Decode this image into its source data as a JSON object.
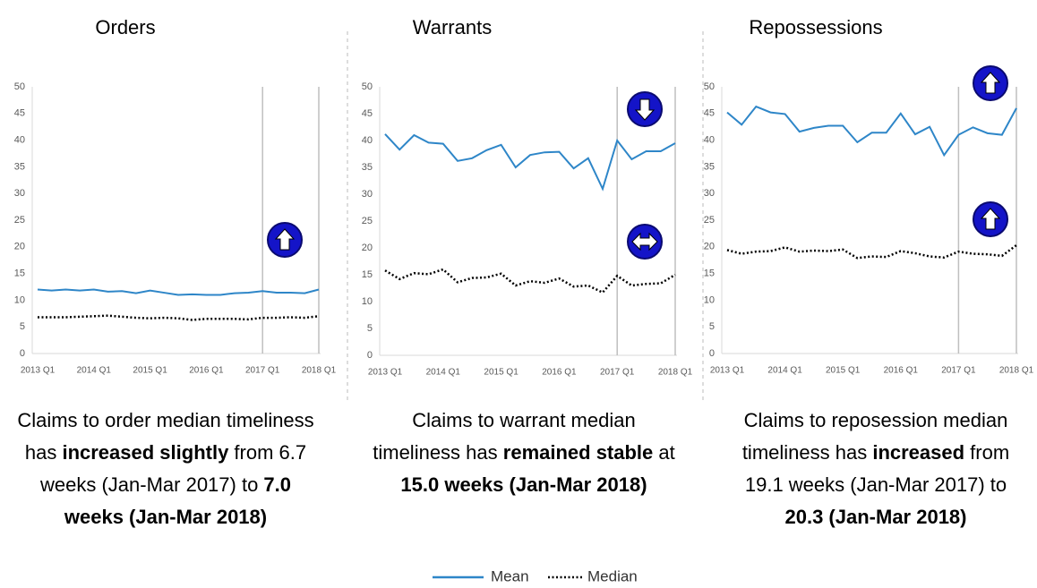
{
  "chart_data": [
    {
      "type": "line",
      "title": "Orders",
      "categories": [
        "2013 Q1",
        null,
        null,
        null,
        "2014 Q1",
        null,
        null,
        null,
        "2015 Q1",
        null,
        null,
        null,
        "2016 Q1",
        null,
        null,
        null,
        "2017 Q1",
        null,
        null,
        null,
        "2018 Q1"
      ],
      "series": [
        {
          "color": "#2e86c8",
          "dash": "solid",
          "values": [
            12,
            11.8,
            12,
            11.8,
            12,
            11.6,
            11.7,
            11.3,
            11.8,
            11.4,
            11,
            11.1,
            11,
            11,
            11.3,
            11.4,
            11.7,
            11.4,
            11.4,
            11.3,
            12
          ]
        },
        {
          "color": "#000000",
          "dash": "dotted",
          "values": [
            6.8,
            6.8,
            6.8,
            6.9,
            7,
            7.1,
            6.9,
            6.7,
            6.6,
            6.7,
            6.6,
            6.3,
            6.5,
            6.5,
            6.5,
            6.4,
            6.7,
            6.7,
            6.8,
            6.7,
            7.0
          ]
        }
      ],
      "ylim": [
        0,
        50
      ],
      "yticks": [
        0,
        5,
        10,
        15,
        20,
        25,
        30,
        35,
        40,
        45,
        50
      ]
    },
    {
      "type": "line",
      "title": "Warrants",
      "categories": [
        "2013 Q1",
        null,
        null,
        null,
        "2014 Q1",
        null,
        null,
        null,
        "2015 Q1",
        null,
        null,
        null,
        "2016 Q1",
        null,
        null,
        null,
        "2017 Q1",
        null,
        null,
        null,
        "2018 Q1"
      ],
      "series": [
        {
          "color": "#2e86c8",
          "dash": "solid",
          "values": [
            41.2,
            38.3,
            41,
            39.6,
            39.4,
            36.2,
            36.7,
            38.2,
            39.2,
            35,
            37.3,
            37.8,
            37.9,
            34.8,
            36.7,
            31,
            40,
            36.5,
            38,
            38,
            39.5
          ]
        },
        {
          "color": "#000000",
          "dash": "dotted",
          "values": [
            15.8,
            14.2,
            15.3,
            15.1,
            16,
            13.6,
            14.4,
            14.5,
            15.2,
            13,
            13.8,
            13.5,
            14.3,
            12.8,
            13,
            11.7,
            14.8,
            13,
            13.3,
            13.4,
            15.0
          ]
        }
      ],
      "ylim": [
        0,
        50
      ],
      "yticks": [
        0,
        5,
        10,
        15,
        20,
        25,
        30,
        35,
        40,
        45,
        50
      ]
    },
    {
      "type": "line",
      "title": "Repossessions",
      "categories": [
        "2013 Q1",
        null,
        null,
        null,
        "2014 Q1",
        null,
        null,
        null,
        "2015 Q1",
        null,
        null,
        null,
        "2016 Q1",
        null,
        null,
        null,
        "2017 Q1",
        null,
        null,
        null,
        "2018 Q1"
      ],
      "series": [
        {
          "color": "#2e86c8",
          "dash": "solid",
          "values": [
            45.2,
            42.9,
            46.3,
            45.2,
            44.9,
            41.6,
            42.3,
            42.7,
            42.7,
            39.6,
            41.4,
            41.4,
            45,
            41.1,
            42.5,
            37.2,
            41,
            42.4,
            41.3,
            41,
            46
          ]
        },
        {
          "color": "#000000",
          "dash": "dotted",
          "values": [
            19.4,
            18.7,
            19.1,
            19.2,
            19.9,
            19.1,
            19.3,
            19.2,
            19.5,
            17.9,
            18.2,
            18.1,
            19.2,
            18.8,
            18.2,
            18,
            19.1,
            18.7,
            18.6,
            18.3,
            20.3
          ]
        }
      ],
      "ylim": [
        0,
        50
      ],
      "yticks": [
        0,
        5,
        10,
        15,
        20,
        25,
        30,
        35,
        40,
        45,
        50
      ]
    }
  ],
  "captions": [
    [
      {
        "text": "Claims to order median timeliness has ",
        "bold": false
      },
      {
        "text": "increased slightly",
        "bold": true
      },
      {
        "text": " from 6.7 weeks (Jan-Mar 2017) to ",
        "bold": false
      },
      {
        "text": "7.0 weeks (Jan-Mar 2018)",
        "bold": true
      }
    ],
    [
      {
        "text": "Claims to warrant median timeliness has ",
        "bold": false
      },
      {
        "text": "remained stable",
        "bold": true
      },
      {
        "text": " at ",
        "bold": false
      },
      {
        "text": "15.0 weeks (Jan-Mar 2018)",
        "bold": true
      }
    ],
    [
      {
        "text": "Claims to reposession median timeliness has ",
        "bold": false
      },
      {
        "text": "increased",
        "bold": true
      },
      {
        "text": " from 19.1 weeks (Jan-Mar 2017) to ",
        "bold": false
      },
      {
        "text": "20.3 (Jan-Mar 2018)",
        "bold": true
      }
    ]
  ],
  "legend": [
    {
      "name": "Mean",
      "color": "#2e86c8",
      "dash": "solid"
    },
    {
      "name": "Median",
      "color": "#000000",
      "dash": "dotted"
    }
  ]
}
